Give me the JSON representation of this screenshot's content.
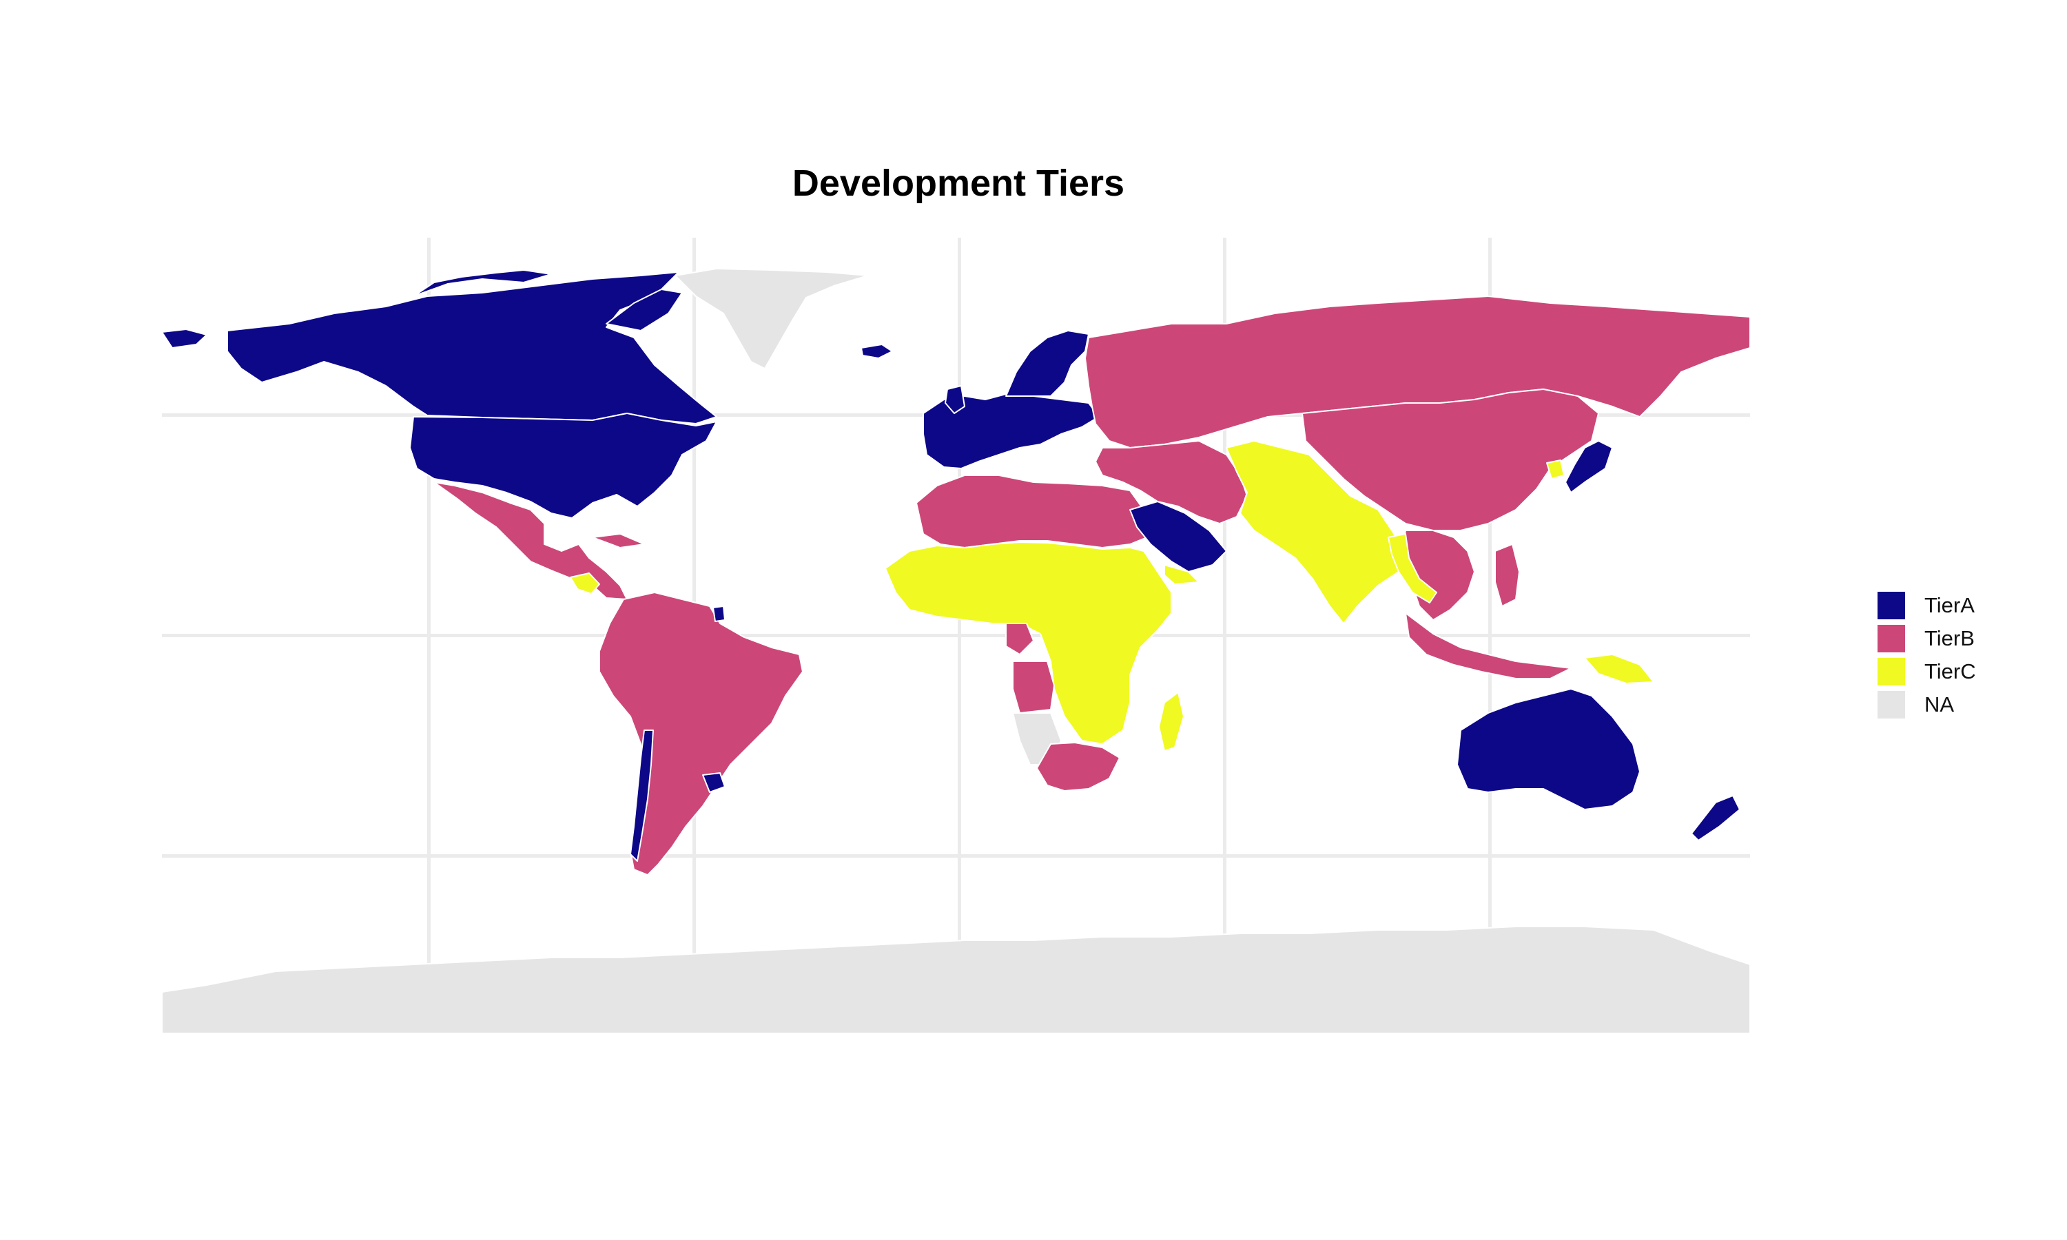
{
  "title": "Development Tiers",
  "colors": {
    "TierA": "#0d0887",
    "TierB": "#cc4778",
    "TierC": "#f0f921",
    "NA": "#e5e5e5",
    "grid": "#ebebeb",
    "border": "#ffffff"
  },
  "legend": {
    "items": [
      {
        "key": "TierA",
        "label": "TierA",
        "color": "#0d0887"
      },
      {
        "key": "TierB",
        "label": "TierB",
        "color": "#cc4778"
      },
      {
        "key": "TierC",
        "label": "TierC",
        "color": "#f0f921"
      },
      {
        "key": "NA",
        "label": "NA",
        "color": "#e5e5e5"
      }
    ]
  },
  "regions": [
    {
      "name": "Canada / Alaska",
      "tier": "TierA"
    },
    {
      "name": "United States",
      "tier": "TierA"
    },
    {
      "name": "Greenland",
      "tier": "NA"
    },
    {
      "name": "Mexico & Central America",
      "tier": "TierB"
    },
    {
      "name": "Guatemala / Honduras / Nicaragua",
      "tier": "TierC"
    },
    {
      "name": "South America",
      "tier": "TierB"
    },
    {
      "name": "Chile",
      "tier": "TierA"
    },
    {
      "name": "Uruguay",
      "tier": "TierA"
    },
    {
      "name": "French Guiana",
      "tier": "TierA"
    },
    {
      "name": "Western & Northern Europe",
      "tier": "TierA"
    },
    {
      "name": "Scandinavia",
      "tier": "TierA"
    },
    {
      "name": "Iceland",
      "tier": "TierA"
    },
    {
      "name": "Eastern Europe & Russia",
      "tier": "TierB"
    },
    {
      "name": "North Africa",
      "tier": "TierB"
    },
    {
      "name": "Sub-Saharan Africa",
      "tier": "TierC"
    },
    {
      "name": "Gabon / Cameroon area",
      "tier": "TierB"
    },
    {
      "name": "Angola",
      "tier": "TierB"
    },
    {
      "name": "Namibia",
      "tier": "NA"
    },
    {
      "name": "South Africa / Botswana",
      "tier": "TierB"
    },
    {
      "name": "Madagascar",
      "tier": "TierC"
    },
    {
      "name": "Saudi Arabia / Gulf",
      "tier": "TierA"
    },
    {
      "name": "Yemen",
      "tier": "TierC"
    },
    {
      "name": "Middle East / Iran",
      "tier": "TierB"
    },
    {
      "name": "Central & South Asia",
      "tier": "TierC"
    },
    {
      "name": "China / Mongolia",
      "tier": "TierB"
    },
    {
      "name": "South Korea / Japan",
      "tier": "TierA"
    },
    {
      "name": "North Korea",
      "tier": "TierC"
    },
    {
      "name": "Southeast Asia",
      "tier": "TierB"
    },
    {
      "name": "Myanmar / Laos / Cambodia",
      "tier": "TierC"
    },
    {
      "name": "Indonesia / Philippines",
      "tier": "TierB"
    },
    {
      "name": "Papua New Guinea",
      "tier": "TierC"
    },
    {
      "name": "Australia",
      "tier": "TierA"
    },
    {
      "name": "New Zealand",
      "tier": "TierA"
    },
    {
      "name": "Antarctica",
      "tier": "NA"
    }
  ]
}
